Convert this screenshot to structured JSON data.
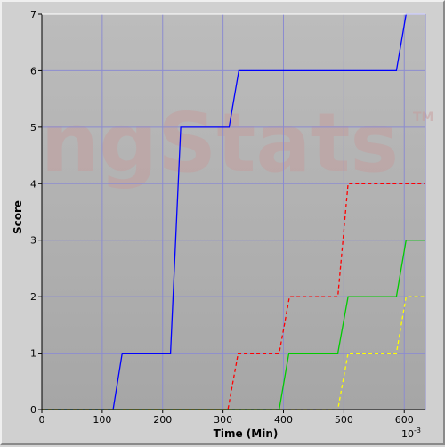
{
  "watermark": "ngStats",
  "watermark_tm": "TM",
  "colors": {
    "plot_bg_top": "#bcbcbc",
    "plot_bg_bottom": "#a6a6a6",
    "grid": "#8c8cd0",
    "frame": "#d0d0d0"
  },
  "chart_data": {
    "type": "line",
    "xlabel": "Time (Min)",
    "ylabel": "Score",
    "x_multiplier": "10",
    "x_multiplier_exp": "-3",
    "xlim": [
      0,
      635
    ],
    "ylim": [
      0,
      7
    ],
    "x_ticks": [
      0,
      100,
      200,
      300,
      400,
      500,
      600
    ],
    "y_ticks": [
      0,
      1,
      2,
      3,
      4,
      5,
      6,
      7
    ],
    "grid": true,
    "series": [
      {
        "color": "#0000ff",
        "dash": "solid",
        "points": [
          [
            0,
            0
          ],
          [
            118,
            0
          ],
          [
            133,
            1
          ],
          [
            213,
            1
          ],
          [
            230,
            5
          ],
          [
            310,
            5
          ],
          [
            326,
            6
          ],
          [
            587,
            6
          ],
          [
            603,
            7
          ],
          [
            635,
            7
          ]
        ]
      },
      {
        "color": "#ff0000",
        "dash": "dashed",
        "points": [
          [
            0,
            0
          ],
          [
            308,
            0
          ],
          [
            325,
            1
          ],
          [
            393,
            1
          ],
          [
            410,
            2
          ],
          [
            490,
            2
          ],
          [
            507,
            4
          ],
          [
            635,
            4
          ]
        ]
      },
      {
        "color": "#00cc00",
        "dash": "solid",
        "points": [
          [
            0,
            0
          ],
          [
            393,
            0
          ],
          [
            409,
            1
          ],
          [
            490,
            1
          ],
          [
            507,
            2
          ],
          [
            587,
            2
          ],
          [
            603,
            3
          ],
          [
            635,
            3
          ]
        ]
      },
      {
        "color": "#ffff00",
        "dash": "dashed",
        "points": [
          [
            0,
            0
          ],
          [
            490,
            0
          ],
          [
            507,
            1
          ],
          [
            587,
            1
          ],
          [
            603,
            2
          ],
          [
            635,
            2
          ]
        ]
      }
    ]
  }
}
